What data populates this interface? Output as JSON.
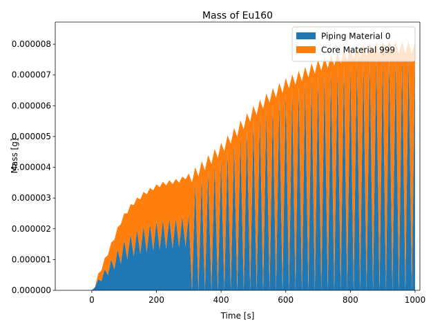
{
  "chart_data": {
    "type": "stackarea",
    "title": "Mass of Eu160",
    "xlabel": "Time [s]",
    "ylabel": "Mass [g]",
    "x": [
      0,
      10,
      20,
      30,
      40,
      50,
      60,
      70,
      80,
      90,
      100,
      110,
      120,
      130,
      140,
      150,
      160,
      170,
      180,
      190,
      200,
      210,
      220,
      230,
      240,
      250,
      260,
      270,
      280,
      290,
      300,
      310,
      320,
      330,
      340,
      350,
      360,
      370,
      380,
      390,
      400,
      410,
      420,
      430,
      440,
      450,
      460,
      470,
      480,
      490,
      500,
      510,
      520,
      530,
      540,
      550,
      560,
      570,
      580,
      590,
      600,
      610,
      620,
      630,
      640,
      650,
      660,
      670,
      680,
      690,
      700,
      710,
      720,
      730,
      740,
      750,
      760,
      770,
      780,
      790,
      800,
      810,
      820,
      830,
      840,
      850,
      860,
      870,
      880,
      890,
      900,
      910,
      920,
      930,
      940,
      950,
      960,
      970,
      980,
      990,
      1000
    ],
    "series": [
      {
        "name": "Piping Material 0",
        "color": "#1f77b4",
        "values": [
          0,
          1e-07,
          3.6e-07,
          3e-07,
          6.8e-07,
          4.9e-07,
          1.01e-06,
          6.8e-07,
          1.33e-06,
          8.7e-07,
          1.63e-06,
          1.01e-06,
          1.82e-06,
          1.11e-06,
          1.96e-06,
          1.18e-06,
          2.08e-06,
          1.24e-06,
          2.16e-06,
          1.29e-06,
          2.24e-06,
          1.33e-06,
          2.29e-06,
          1.35e-06,
          2.33e-06,
          1.37e-06,
          2.35e-06,
          1.39e-06,
          2.41e-06,
          1.43e-06,
          2.47e-06,
          0,
          3.5e-06,
          0,
          3.7e-06,
          0,
          3.9e-06,
          0,
          4.1e-06,
          0,
          4.3e-06,
          0,
          4.54e-06,
          0,
          4.78e-06,
          0,
          5.02e-06,
          0,
          5.26e-06,
          0,
          5.5e-06,
          0,
          5.7e-06,
          0,
          5.9e-06,
          0,
          6.08e-06,
          0,
          6.24e-06,
          0,
          6.4e-06,
          0,
          6.52e-06,
          0,
          6.64e-06,
          0,
          6.76e-06,
          0,
          6.88e-06,
          0,
          7e-06,
          0,
          7.08e-06,
          0,
          7.16e-06,
          0,
          7.24e-06,
          0,
          7.32e-06,
          0,
          7.4e-06,
          0,
          7.44e-06,
          0,
          7.48e-06,
          0,
          7.52e-06,
          0,
          7.56e-06,
          0,
          7.6e-06,
          0,
          7.6e-06,
          0,
          7.6e-06,
          0,
          7.6e-06,
          0,
          7.6e-06,
          0,
          7.6e-06
        ]
      },
      {
        "name": "Core Material 999",
        "color": "#ff7f0e",
        "values": [
          0,
          1e-08,
          1.9e-07,
          3.5e-07,
          3.7e-07,
          6.6e-07,
          5.4e-07,
          9.7e-07,
          7.2e-07,
          1.28e-06,
          8.7e-07,
          1.49e-06,
          9.8e-07,
          1.66e-06,
          1.06e-06,
          1.77e-06,
          1.12e-06,
          1.88e-06,
          1.17e-06,
          1.96e-06,
          1.21e-06,
          2.02e-06,
          1.24e-06,
          2.06e-06,
          1.25e-06,
          2.08e-06,
          1.27e-06,
          2.11e-06,
          1.29e-06,
          2.18e-06,
          1.33e-06,
          3.5e-06,
          5e-07,
          3.7e-06,
          5e-07,
          3.9e-06,
          5e-07,
          4.1e-06,
          5e-07,
          4.3e-06,
          5e-07,
          4.52e-06,
          5e-07,
          4.76e-06,
          5e-07,
          5e-06,
          5e-07,
          5.24e-06,
          5e-07,
          5.48e-06,
          5e-07,
          5.7e-06,
          5e-07,
          5.9e-06,
          5e-07,
          6.1e-06,
          5e-07,
          6.26e-06,
          5e-07,
          6.42e-06,
          5e-07,
          6.56e-06,
          5e-07,
          6.68e-06,
          5e-07,
          6.8e-06,
          5e-07,
          6.92e-06,
          5e-07,
          7.04e-06,
          5e-07,
          7.14e-06,
          5e-07,
          7.22e-06,
          5e-07,
          7.3e-06,
          5e-07,
          7.38e-06,
          5e-07,
          7.46e-06,
          5e-07,
          7.52e-06,
          5e-07,
          7.56e-06,
          5e-07,
          7.6e-06,
          5e-07,
          7.64e-06,
          5e-07,
          7.68e-06,
          5e-07,
          7.7e-06,
          5e-07,
          7.7e-06,
          5e-07,
          7.7e-06,
          5e-07,
          7.7e-06,
          5e-07,
          7.7e-06,
          5e-07
        ]
      }
    ],
    "xlim": [
      -113,
      1015
    ],
    "ylim": [
      0,
      8.72e-06
    ],
    "xticks": [
      0,
      200,
      400,
      600,
      800,
      1000
    ],
    "yticks": [
      {
        "value": 0,
        "label": "0.000000"
      },
      {
        "value": 1e-06,
        "label": "0.000001"
      },
      {
        "value": 2e-06,
        "label": "0.000002"
      },
      {
        "value": 3e-06,
        "label": "0.000003"
      },
      {
        "value": 4e-06,
        "label": "0.000004"
      },
      {
        "value": 5e-06,
        "label": "0.000005"
      },
      {
        "value": 6e-06,
        "label": "0.000006"
      },
      {
        "value": 7e-06,
        "label": "0.000007"
      },
      {
        "value": 8e-06,
        "label": "0.000008"
      }
    ],
    "legend": "upper right"
  }
}
